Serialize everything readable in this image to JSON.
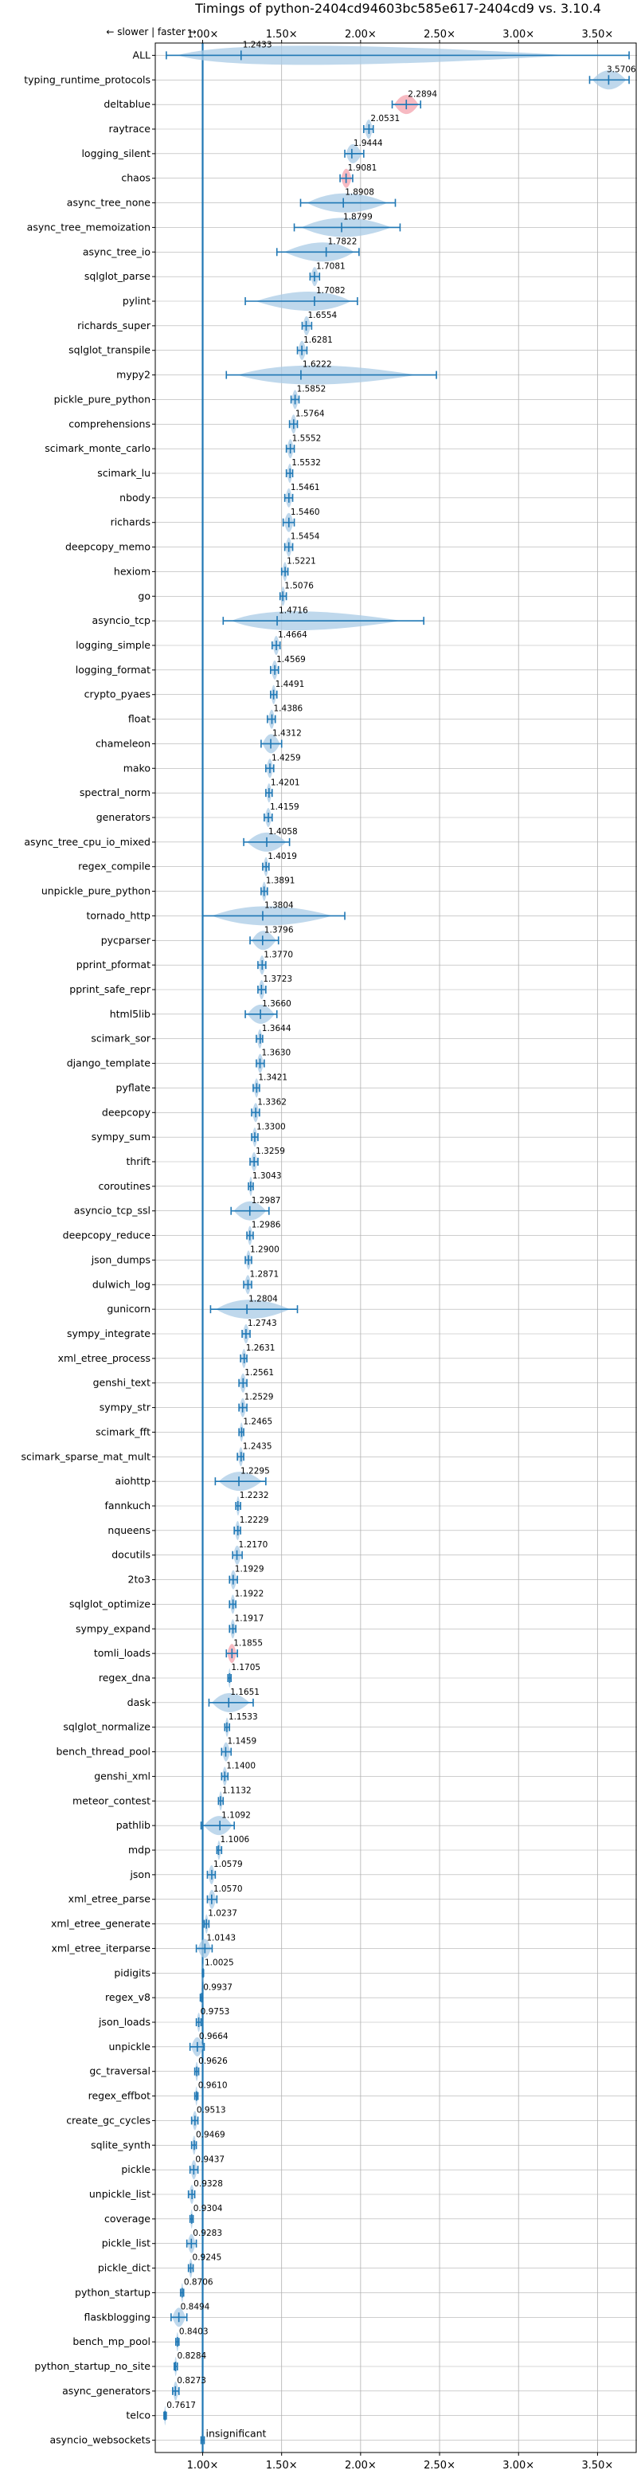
{
  "chart_data": {
    "type": "violin",
    "title": "Timings of python-2404cd94603bc585e617-2404cd9 vs. 3.10.4",
    "direction_note": "← slower | faster →",
    "xlim": [
      0.7,
      3.75
    ],
    "x_ticks": [
      1.0,
      1.5,
      2.0,
      2.5,
      3.0,
      3.5
    ],
    "x_tick_labels": [
      "1.00×",
      "1.50×",
      "2.00×",
      "2.50×",
      "3.00×",
      "3.50×"
    ],
    "reference_x": 1.0,
    "grid": true,
    "insignificant_label": "insignificant",
    "rows": [
      {
        "name": "ALL",
        "mean": 1.2433,
        "lo": 0.77,
        "hi": 3.7,
        "mean_label": "1.2433",
        "color": "blue"
      },
      {
        "name": "typing_runtime_protocols",
        "mean": 3.5706,
        "lo": 3.45,
        "hi": 3.7,
        "mean_label": "3.5706",
        "color": "blue"
      },
      {
        "name": "deltablue",
        "mean": 2.2894,
        "lo": 2.2,
        "hi": 2.38,
        "mean_label": "2.2894",
        "color": "red"
      },
      {
        "name": "raytrace",
        "mean": 2.0531,
        "lo": 2.02,
        "hi": 2.08,
        "mean_label": "2.0531",
        "color": "blue"
      },
      {
        "name": "logging_silent",
        "mean": 1.9444,
        "lo": 1.9,
        "hi": 2.02,
        "mean_label": "1.9444",
        "color": "blue"
      },
      {
        "name": "chaos",
        "mean": 1.9081,
        "lo": 1.87,
        "hi": 1.95,
        "mean_label": "1.9081",
        "color": "red"
      },
      {
        "name": "async_tree_none",
        "mean": 1.8908,
        "lo": 1.62,
        "hi": 2.22,
        "mean_label": "1.8908",
        "color": "blue"
      },
      {
        "name": "async_tree_memoization",
        "mean": 1.8799,
        "lo": 1.58,
        "hi": 2.25,
        "mean_label": "1.8799",
        "color": "blue"
      },
      {
        "name": "async_tree_io",
        "mean": 1.7822,
        "lo": 1.47,
        "hi": 1.99,
        "mean_label": "1.7822",
        "color": "blue"
      },
      {
        "name": "sqlglot_parse",
        "mean": 1.7081,
        "lo": 1.68,
        "hi": 1.74,
        "mean_label": "1.7081",
        "color": "blue"
      },
      {
        "name": "pylint",
        "mean": 1.7082,
        "lo": 1.27,
        "hi": 1.98,
        "mean_label": "1.7082",
        "color": "blue"
      },
      {
        "name": "richards_super",
        "mean": 1.6554,
        "lo": 1.63,
        "hi": 1.69,
        "mean_label": "1.6554",
        "color": "blue"
      },
      {
        "name": "sqlglot_transpile",
        "mean": 1.6281,
        "lo": 1.6,
        "hi": 1.66,
        "mean_label": "1.6281",
        "color": "blue"
      },
      {
        "name": "mypy2",
        "mean": 1.6222,
        "lo": 1.15,
        "hi": 2.48,
        "mean_label": "1.6222",
        "color": "blue"
      },
      {
        "name": "pickle_pure_python",
        "mean": 1.5852,
        "lo": 1.56,
        "hi": 1.61,
        "mean_label": "1.5852",
        "color": "blue"
      },
      {
        "name": "comprehensions",
        "mean": 1.5764,
        "lo": 1.55,
        "hi": 1.6,
        "mean_label": "1.5764",
        "color": "blue"
      },
      {
        "name": "scimark_monte_carlo",
        "mean": 1.5552,
        "lo": 1.53,
        "hi": 1.58,
        "mean_label": "1.5552",
        "color": "blue"
      },
      {
        "name": "scimark_lu",
        "mean": 1.5532,
        "lo": 1.53,
        "hi": 1.57,
        "mean_label": "1.5532",
        "color": "blue"
      },
      {
        "name": "nbody",
        "mean": 1.5461,
        "lo": 1.52,
        "hi": 1.57,
        "mean_label": "1.5461",
        "color": "blue"
      },
      {
        "name": "richards",
        "mean": 1.546,
        "lo": 1.51,
        "hi": 1.58,
        "mean_label": "1.5460",
        "color": "blue"
      },
      {
        "name": "deepcopy_memo",
        "mean": 1.5454,
        "lo": 1.52,
        "hi": 1.57,
        "mean_label": "1.5454",
        "color": "blue"
      },
      {
        "name": "hexiom",
        "mean": 1.5221,
        "lo": 1.5,
        "hi": 1.54,
        "mean_label": "1.5221",
        "color": "blue"
      },
      {
        "name": "go",
        "mean": 1.5076,
        "lo": 1.49,
        "hi": 1.53,
        "mean_label": "1.5076",
        "color": "blue"
      },
      {
        "name": "asyncio_tcp",
        "mean": 1.4716,
        "lo": 1.13,
        "hi": 2.4,
        "mean_label": "1.4716",
        "color": "blue"
      },
      {
        "name": "logging_simple",
        "mean": 1.4664,
        "lo": 1.44,
        "hi": 1.49,
        "mean_label": "1.4664",
        "color": "blue"
      },
      {
        "name": "logging_format",
        "mean": 1.4569,
        "lo": 1.43,
        "hi": 1.48,
        "mean_label": "1.4569",
        "color": "blue"
      },
      {
        "name": "crypto_pyaes",
        "mean": 1.4491,
        "lo": 1.43,
        "hi": 1.47,
        "mean_label": "1.4491",
        "color": "blue"
      },
      {
        "name": "float",
        "mean": 1.4386,
        "lo": 1.41,
        "hi": 1.46,
        "mean_label": "1.4386",
        "color": "blue"
      },
      {
        "name": "chameleon",
        "mean": 1.4312,
        "lo": 1.37,
        "hi": 1.5,
        "mean_label": "1.4312",
        "color": "blue"
      },
      {
        "name": "mako",
        "mean": 1.4259,
        "lo": 1.4,
        "hi": 1.45,
        "mean_label": "1.4259",
        "color": "blue"
      },
      {
        "name": "spectral_norm",
        "mean": 1.4201,
        "lo": 1.4,
        "hi": 1.44,
        "mean_label": "1.4201",
        "color": "blue"
      },
      {
        "name": "generators",
        "mean": 1.4159,
        "lo": 1.39,
        "hi": 1.44,
        "mean_label": "1.4159",
        "color": "blue"
      },
      {
        "name": "async_tree_cpu_io_mixed",
        "mean": 1.4058,
        "lo": 1.26,
        "hi": 1.55,
        "mean_label": "1.4058",
        "color": "blue"
      },
      {
        "name": "regex_compile",
        "mean": 1.4019,
        "lo": 1.38,
        "hi": 1.42,
        "mean_label": "1.4019",
        "color": "blue"
      },
      {
        "name": "unpickle_pure_python",
        "mean": 1.3891,
        "lo": 1.37,
        "hi": 1.41,
        "mean_label": "1.3891",
        "color": "blue"
      },
      {
        "name": "tornado_http",
        "mean": 1.3804,
        "lo": 1.0,
        "hi": 1.9,
        "mean_label": "1.3804",
        "color": "blue"
      },
      {
        "name": "pycparser",
        "mean": 1.3796,
        "lo": 1.3,
        "hi": 1.48,
        "mean_label": "1.3796",
        "color": "blue"
      },
      {
        "name": "pprint_pformat",
        "mean": 1.377,
        "lo": 1.35,
        "hi": 1.4,
        "mean_label": "1.3770",
        "color": "blue"
      },
      {
        "name": "pprint_safe_repr",
        "mean": 1.3723,
        "lo": 1.35,
        "hi": 1.4,
        "mean_label": "1.3723",
        "color": "blue"
      },
      {
        "name": "html5lib",
        "mean": 1.366,
        "lo": 1.27,
        "hi": 1.47,
        "mean_label": "1.3660",
        "color": "blue"
      },
      {
        "name": "scimark_sor",
        "mean": 1.3644,
        "lo": 1.34,
        "hi": 1.38,
        "mean_label": "1.3644",
        "color": "blue"
      },
      {
        "name": "django_template",
        "mean": 1.363,
        "lo": 1.34,
        "hi": 1.39,
        "mean_label": "1.3630",
        "color": "blue"
      },
      {
        "name": "pyflate",
        "mean": 1.3421,
        "lo": 1.32,
        "hi": 1.36,
        "mean_label": "1.3421",
        "color": "blue"
      },
      {
        "name": "deepcopy",
        "mean": 1.3362,
        "lo": 1.31,
        "hi": 1.36,
        "mean_label": "1.3362",
        "color": "blue"
      },
      {
        "name": "sympy_sum",
        "mean": 1.33,
        "lo": 1.31,
        "hi": 1.35,
        "mean_label": "1.3300",
        "color": "blue"
      },
      {
        "name": "thrift",
        "mean": 1.3259,
        "lo": 1.3,
        "hi": 1.35,
        "mean_label": "1.3259",
        "color": "blue"
      },
      {
        "name": "coroutines",
        "mean": 1.3043,
        "lo": 1.29,
        "hi": 1.32,
        "mean_label": "1.3043",
        "color": "blue"
      },
      {
        "name": "asyncio_tcp_ssl",
        "mean": 1.2987,
        "lo": 1.18,
        "hi": 1.42,
        "mean_label": "1.2987",
        "color": "blue"
      },
      {
        "name": "deepcopy_reduce",
        "mean": 1.2986,
        "lo": 1.28,
        "hi": 1.32,
        "mean_label": "1.2986",
        "color": "blue"
      },
      {
        "name": "json_dumps",
        "mean": 1.29,
        "lo": 1.27,
        "hi": 1.31,
        "mean_label": "1.2900",
        "color": "blue"
      },
      {
        "name": "dulwich_log",
        "mean": 1.2871,
        "lo": 1.26,
        "hi": 1.31,
        "mean_label": "1.2871",
        "color": "blue"
      },
      {
        "name": "gunicorn",
        "mean": 1.2804,
        "lo": 1.05,
        "hi": 1.6,
        "mean_label": "1.2804",
        "color": "blue"
      },
      {
        "name": "sympy_integrate",
        "mean": 1.2743,
        "lo": 1.25,
        "hi": 1.3,
        "mean_label": "1.2743",
        "color": "blue"
      },
      {
        "name": "xml_etree_process",
        "mean": 1.2631,
        "lo": 1.24,
        "hi": 1.28,
        "mean_label": "1.2631",
        "color": "blue"
      },
      {
        "name": "genshi_text",
        "mean": 1.2561,
        "lo": 1.23,
        "hi": 1.28,
        "mean_label": "1.2561",
        "color": "blue"
      },
      {
        "name": "sympy_str",
        "mean": 1.2529,
        "lo": 1.23,
        "hi": 1.28,
        "mean_label": "1.2529",
        "color": "blue"
      },
      {
        "name": "scimark_fft",
        "mean": 1.2465,
        "lo": 1.23,
        "hi": 1.26,
        "mean_label": "1.2465",
        "color": "blue"
      },
      {
        "name": "scimark_sparse_mat_mult",
        "mean": 1.2435,
        "lo": 1.22,
        "hi": 1.26,
        "mean_label": "1.2435",
        "color": "blue"
      },
      {
        "name": "aiohttp",
        "mean": 1.2295,
        "lo": 1.08,
        "hi": 1.4,
        "mean_label": "1.2295",
        "color": "blue"
      },
      {
        "name": "fannkuch",
        "mean": 1.2232,
        "lo": 1.21,
        "hi": 1.24,
        "mean_label": "1.2232",
        "color": "blue"
      },
      {
        "name": "nqueens",
        "mean": 1.2229,
        "lo": 1.2,
        "hi": 1.24,
        "mean_label": "1.2229",
        "color": "blue"
      },
      {
        "name": "docutils",
        "mean": 1.217,
        "lo": 1.19,
        "hi": 1.25,
        "mean_label": "1.2170",
        "color": "blue"
      },
      {
        "name": "2to3",
        "mean": 1.1929,
        "lo": 1.17,
        "hi": 1.22,
        "mean_label": "1.1929",
        "color": "blue"
      },
      {
        "name": "sqlglot_optimize",
        "mean": 1.1922,
        "lo": 1.17,
        "hi": 1.21,
        "mean_label": "1.1922",
        "color": "blue"
      },
      {
        "name": "sympy_expand",
        "mean": 1.1917,
        "lo": 1.17,
        "hi": 1.21,
        "mean_label": "1.1917",
        "color": "blue"
      },
      {
        "name": "tomli_loads",
        "mean": 1.1855,
        "lo": 1.15,
        "hi": 1.22,
        "mean_label": "1.1855",
        "color": "red"
      },
      {
        "name": "regex_dna",
        "mean": 1.1705,
        "lo": 1.16,
        "hi": 1.18,
        "mean_label": "1.1705",
        "color": "blue"
      },
      {
        "name": "dask",
        "mean": 1.1651,
        "lo": 1.04,
        "hi": 1.32,
        "mean_label": "1.1651",
        "color": "blue"
      },
      {
        "name": "sqlglot_normalize",
        "mean": 1.1533,
        "lo": 1.14,
        "hi": 1.17,
        "mean_label": "1.1533",
        "color": "blue"
      },
      {
        "name": "bench_thread_pool",
        "mean": 1.1459,
        "lo": 1.12,
        "hi": 1.18,
        "mean_label": "1.1459",
        "color": "blue"
      },
      {
        "name": "genshi_xml",
        "mean": 1.14,
        "lo": 1.12,
        "hi": 1.16,
        "mean_label": "1.1400",
        "color": "blue"
      },
      {
        "name": "meteor_contest",
        "mean": 1.1132,
        "lo": 1.1,
        "hi": 1.13,
        "mean_label": "1.1132",
        "color": "blue"
      },
      {
        "name": "pathlib",
        "mean": 1.1092,
        "lo": 0.99,
        "hi": 1.2,
        "mean_label": "1.1092",
        "color": "blue"
      },
      {
        "name": "mdp",
        "mean": 1.1006,
        "lo": 1.09,
        "hi": 1.12,
        "mean_label": "1.1006",
        "color": "blue"
      },
      {
        "name": "json",
        "mean": 1.0579,
        "lo": 1.03,
        "hi": 1.08,
        "mean_label": "1.0579",
        "color": "blue"
      },
      {
        "name": "xml_etree_parse",
        "mean": 1.057,
        "lo": 1.03,
        "hi": 1.09,
        "mean_label": "1.0570",
        "color": "blue"
      },
      {
        "name": "xml_etree_generate",
        "mean": 1.0237,
        "lo": 1.01,
        "hi": 1.04,
        "mean_label": "1.0237",
        "color": "blue"
      },
      {
        "name": "xml_etree_iterparse",
        "mean": 1.0143,
        "lo": 0.96,
        "hi": 1.06,
        "mean_label": "1.0143",
        "color": "blue"
      },
      {
        "name": "pidigits",
        "mean": 1.0025,
        "lo": 0.998,
        "hi": 1.006,
        "mean_label": "1.0025",
        "color": "blue"
      },
      {
        "name": "regex_v8",
        "mean": 0.9937,
        "lo": 0.985,
        "hi": 1.0,
        "mean_label": "0.9937",
        "color": "blue"
      },
      {
        "name": "json_loads",
        "mean": 0.9753,
        "lo": 0.96,
        "hi": 0.99,
        "mean_label": "0.9753",
        "color": "blue"
      },
      {
        "name": "unpickle",
        "mean": 0.9664,
        "lo": 0.92,
        "hi": 1.01,
        "mean_label": "0.9664",
        "color": "blue"
      },
      {
        "name": "gc_traversal",
        "mean": 0.9626,
        "lo": 0.95,
        "hi": 0.975,
        "mean_label": "0.9626",
        "color": "blue"
      },
      {
        "name": "regex_effbot",
        "mean": 0.961,
        "lo": 0.95,
        "hi": 0.97,
        "mean_label": "0.9610",
        "color": "blue"
      },
      {
        "name": "create_gc_cycles",
        "mean": 0.9513,
        "lo": 0.93,
        "hi": 0.97,
        "mean_label": "0.9513",
        "color": "blue"
      },
      {
        "name": "sqlite_synth",
        "mean": 0.9469,
        "lo": 0.93,
        "hi": 0.96,
        "mean_label": "0.9469",
        "color": "blue"
      },
      {
        "name": "pickle",
        "mean": 0.9437,
        "lo": 0.92,
        "hi": 0.97,
        "mean_label": "0.9437",
        "color": "blue"
      },
      {
        "name": "unpickle_list",
        "mean": 0.9328,
        "lo": 0.91,
        "hi": 0.95,
        "mean_label": "0.9328",
        "color": "blue"
      },
      {
        "name": "coverage",
        "mean": 0.9304,
        "lo": 0.92,
        "hi": 0.94,
        "mean_label": "0.9304",
        "color": "blue"
      },
      {
        "name": "pickle_list",
        "mean": 0.9283,
        "lo": 0.9,
        "hi": 0.96,
        "mean_label": "0.9283",
        "color": "blue"
      },
      {
        "name": "pickle_dict",
        "mean": 0.9245,
        "lo": 0.91,
        "hi": 0.94,
        "mean_label": "0.9245",
        "color": "blue"
      },
      {
        "name": "python_startup",
        "mean": 0.8706,
        "lo": 0.86,
        "hi": 0.88,
        "mean_label": "0.8706",
        "color": "blue"
      },
      {
        "name": "flaskblogging",
        "mean": 0.8494,
        "lo": 0.8,
        "hi": 0.9,
        "mean_label": "0.8494",
        "color": "blue"
      },
      {
        "name": "bench_mp_pool",
        "mean": 0.8403,
        "lo": 0.83,
        "hi": 0.85,
        "mean_label": "0.8403",
        "color": "blue"
      },
      {
        "name": "python_startup_no_site",
        "mean": 0.8284,
        "lo": 0.82,
        "hi": 0.84,
        "mean_label": "0.8284",
        "color": "blue"
      },
      {
        "name": "async_generators",
        "mean": 0.8273,
        "lo": 0.81,
        "hi": 0.85,
        "mean_label": "0.8273",
        "color": "blue"
      },
      {
        "name": "telco",
        "mean": 0.7617,
        "lo": 0.755,
        "hi": 0.77,
        "mean_label": "0.7617",
        "color": "blue"
      },
      {
        "name": "asyncio_websockets",
        "mean": 1.0,
        "lo": 0.99,
        "hi": 1.01,
        "mean_label": "",
        "color": "blue",
        "insignificant": true
      }
    ]
  },
  "colors": {
    "violin_blue": "#1f77b4",
    "violin_fill_blue": "#a9cbe6",
    "violin_fill_red": "#f4a3ad",
    "grid": "#b0b0b0",
    "text": "#000000"
  }
}
